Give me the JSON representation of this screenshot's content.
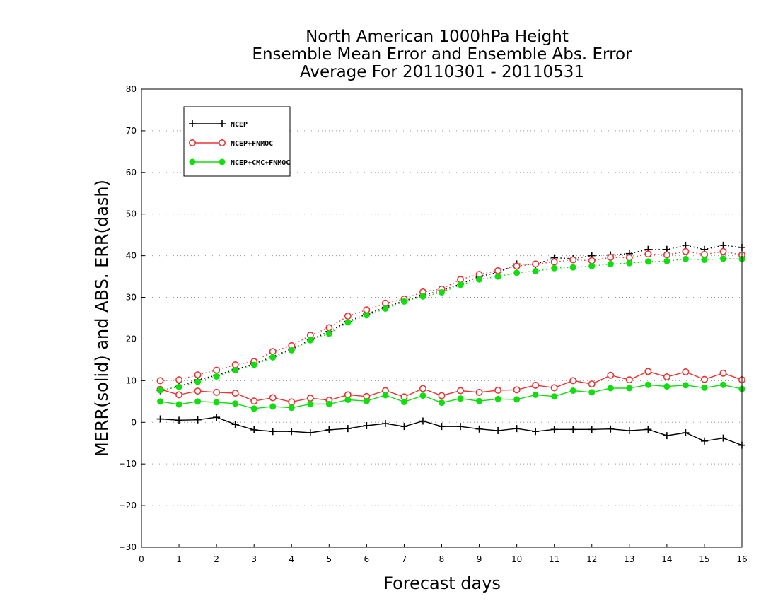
{
  "chart_data": {
    "type": "line",
    "title": [
      "North American 1000hPa Height",
      "Ensemble Mean Error and Ensemble Abs. Error",
      "Average For 20110301 - 20110531"
    ],
    "xlabel": "Forecast days",
    "ylabel": "MERR(solid) and ABS. ERR(dash)",
    "xlim": [
      0,
      16
    ],
    "ylim": [
      -30,
      80
    ],
    "xticks": [
      0,
      1,
      2,
      3,
      4,
      5,
      6,
      7,
      8,
      9,
      10,
      11,
      12,
      13,
      14,
      15,
      16
    ],
    "yticks": [
      -30,
      -20,
      -10,
      0,
      10,
      20,
      30,
      40,
      50,
      60,
      70,
      80
    ],
    "grid": true,
    "legend_position": "top-left",
    "x": [
      0.5,
      1,
      1.5,
      2,
      2.5,
      3,
      3.5,
      4,
      4.5,
      5,
      5.5,
      6,
      6.5,
      7,
      7.5,
      8,
      8.5,
      9,
      9.5,
      10,
      10.5,
      11,
      11.5,
      12,
      12.5,
      13,
      13.5,
      14,
      14.5,
      15,
      15.5,
      16
    ],
    "series": [
      {
        "name": "NCEP",
        "color": "#000000",
        "marker": "plus",
        "merr": [
          0.8,
          0.5,
          0.6,
          1.2,
          -0.5,
          -1.8,
          -2.2,
          -2.2,
          -2.5,
          -1.8,
          -1.5,
          -0.8,
          -0.3,
          -1.0,
          0.3,
          -1.0,
          -1.0,
          -1.6,
          -2.0,
          -1.5,
          -2.2,
          -1.7,
          -1.7,
          -1.7,
          -1.6,
          -2.0,
          -1.7,
          -3.2,
          -2.5,
          -4.5,
          -3.8,
          -5.5
        ],
        "abs_err": [
          7.6,
          8.6,
          10.2,
          11.3,
          12.7,
          14.0,
          15.8,
          17.6,
          19.8,
          21.8,
          24.2,
          26.0,
          27.6,
          29.2,
          30.5,
          31.6,
          33.2,
          35.0,
          36.0,
          38.0,
          37.9,
          39.5,
          39.3,
          40.0,
          40.2,
          40.5,
          41.5,
          41.5,
          42.5,
          41.5,
          42.5,
          42.0
        ]
      },
      {
        "name": "NCEP+FNMOC",
        "color": "#ee3333",
        "marker": "open-circle",
        "merr": [
          7.9,
          6.6,
          7.5,
          7.2,
          7.0,
          5.1,
          5.9,
          4.9,
          5.8,
          5.3,
          6.6,
          6.2,
          7.6,
          6.1,
          8.1,
          6.4,
          7.6,
          7.2,
          7.7,
          7.8,
          8.9,
          8.3,
          10.0,
          9.2,
          11.3,
          10.2,
          12.2,
          10.9,
          12.1,
          10.3,
          11.8,
          10.2
        ],
        "abs_err": [
          10.0,
          10.2,
          11.4,
          12.5,
          13.8,
          14.6,
          17.0,
          18.4,
          20.9,
          22.7,
          25.5,
          27.0,
          28.6,
          29.6,
          31.3,
          32.0,
          34.3,
          35.5,
          36.4,
          37.5,
          38.0,
          38.5,
          39.0,
          38.8,
          39.6,
          39.5,
          40.4,
          40.2,
          41.0,
          40.3,
          41.0,
          40.2
        ]
      },
      {
        "name": "NCEP+CMC+FNMOC",
        "color": "#11dd11",
        "marker": "filled-circle",
        "merr": [
          5.0,
          4.3,
          5.0,
          4.8,
          4.5,
          3.3,
          3.8,
          3.5,
          4.4,
          4.4,
          5.4,
          5.1,
          6.5,
          4.9,
          6.4,
          4.7,
          5.7,
          5.1,
          5.6,
          5.5,
          6.6,
          6.2,
          7.6,
          7.2,
          8.2,
          8.2,
          9.0,
          8.6,
          8.9,
          8.3,
          9.0,
          8.0
        ],
        "abs_err": [
          7.7,
          8.5,
          9.7,
          11.0,
          12.5,
          13.8,
          15.6,
          17.3,
          19.7,
          21.3,
          24.0,
          25.7,
          27.3,
          29.0,
          30.2,
          31.2,
          33.0,
          34.3,
          35.0,
          35.9,
          36.3,
          37.0,
          37.2,
          37.5,
          38.0,
          38.2,
          38.6,
          38.7,
          39.2,
          39.0,
          39.3,
          39.2
        ]
      }
    ]
  }
}
